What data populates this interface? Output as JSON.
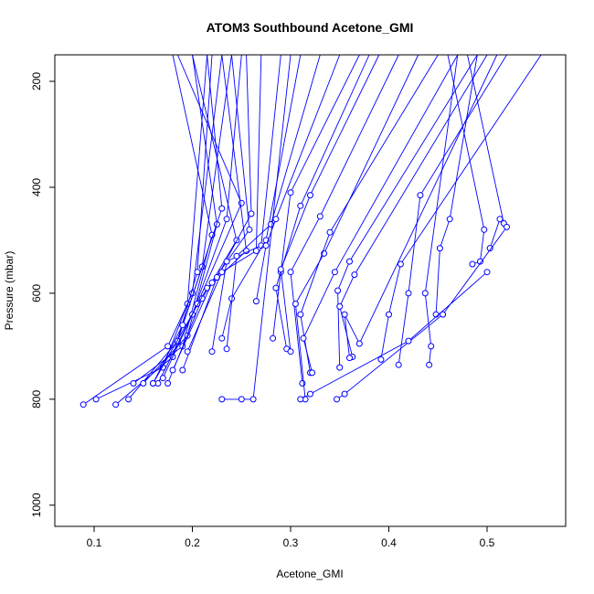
{
  "chart_data": {
    "type": "line",
    "title": "ATOM3 Southbound Acetone_GMI",
    "xlabel": "Acetone_GMI",
    "ylabel": "Pressure (mbar)",
    "xlim": [
      0.06,
      0.58
    ],
    "ylim": [
      1040,
      150
    ],
    "y_reversed": true,
    "x_ticks": [
      0.1,
      0.2,
      0.3,
      0.4,
      0.5
    ],
    "x_tick_labels": [
      "0.1",
      "0.2",
      "0.3",
      "0.4",
      "0.5"
    ],
    "y_ticks": [
      200,
      400,
      600,
      800,
      1000
    ],
    "y_tick_labels": [
      "200",
      "400",
      "600",
      "800",
      "1000"
    ],
    "series_color": "#0000ff",
    "marker": "open-circle",
    "series": [
      {
        "x": [
          0.102,
          0.17,
          0.195,
          0.215
        ],
        "y": [
          800,
          740,
          620,
          150
        ]
      },
      {
        "x": [
          0.089,
          0.175,
          0.2,
          0.23
        ],
        "y": [
          810,
          700,
          600,
          150
        ]
      },
      {
        "x": [
          0.122,
          0.18,
          0.205,
          0.22
        ],
        "y": [
          810,
          720,
          560,
          150
        ]
      },
      {
        "x": [
          0.135,
          0.185,
          0.21,
          0.24
        ],
        "y": [
          800,
          690,
          550,
          150
        ]
      },
      {
        "x": [
          0.14,
          0.19,
          0.22,
          0.18
        ],
        "y": [
          770,
          700,
          490,
          150
        ]
      },
      {
        "x": [
          0.15,
          0.195,
          0.225,
          0.2
        ],
        "y": [
          770,
          680,
          470,
          150
        ]
      },
      {
        "x": [
          0.16,
          0.19,
          0.23,
          0.215
        ],
        "y": [
          770,
          660,
          440,
          150
        ]
      },
      {
        "x": [
          0.165,
          0.2,
          0.235,
          0.25
        ],
        "y": [
          770,
          640,
          460,
          150
        ]
      },
      {
        "x": [
          0.17,
          0.205,
          0.25,
          0.185
        ],
        "y": [
          760,
          620,
          430,
          150
        ]
      },
      {
        "x": [
          0.175,
          0.21,
          0.245,
          0.2
        ],
        "y": [
          770,
          610,
          500,
          150
        ]
      },
      {
        "x": [
          0.16,
          0.215,
          0.255,
          0.23
        ],
        "y": [
          770,
          590,
          520,
          150
        ]
      },
      {
        "x": [
          0.18,
          0.22,
          0.258,
          0.24
        ],
        "y": [
          745,
          580,
          480,
          150
        ]
      },
      {
        "x": [
          0.19,
          0.225,
          0.26,
          0.255
        ],
        "y": [
          745,
          570,
          450,
          150
        ]
      },
      {
        "x": [
          0.195,
          0.23,
          0.265,
          0.27
        ],
        "y": [
          710,
          560,
          520,
          150
        ]
      },
      {
        "x": [
          0.22,
          0.235,
          0.27,
          0.29
        ],
        "y": [
          710,
          540,
          510,
          150
        ]
      },
      {
        "x": [
          0.23,
          0.24,
          0.275,
          0.31
        ],
        "y": [
          685,
          610,
          500,
          150
        ]
      },
      {
        "x": [
          0.235,
          0.245,
          0.28,
          0.33
        ],
        "y": [
          705,
          530,
          470,
          150
        ]
      },
      {
        "x": [
          0.265,
          0.275,
          0.285,
          0.35
        ],
        "y": [
          615,
          510,
          460,
          150
        ]
      },
      {
        "x": [
          0.282,
          0.29,
          0.3,
          0.37
        ],
        "y": [
          685,
          560,
          410,
          150
        ]
      },
      {
        "x": [
          0.296,
          0.285,
          0.31,
          0.38
        ],
        "y": [
          705,
          590,
          435,
          150
        ]
      },
      {
        "x": [
          0.3,
          0.29,
          0.32,
          0.39
        ],
        "y": [
          710,
          555,
          415,
          150
        ]
      },
      {
        "x": [
          0.312,
          0.3,
          0.33,
          0.41
        ],
        "y": [
          770,
          560,
          455,
          150
        ]
      },
      {
        "x": [
          0.315,
          0.305,
          0.334,
          0.43
        ],
        "y": [
          800,
          620,
          525,
          150
        ]
      },
      {
        "x": [
          0.32,
          0.31,
          0.34,
          0.45
        ],
        "y": [
          750,
          640,
          485,
          150
        ]
      },
      {
        "x": [
          0.322,
          0.313,
          0.345,
          0.47
        ],
        "y": [
          750,
          685,
          560,
          150
        ]
      },
      {
        "x": [
          0.35,
          0.348,
          0.36,
          0.49
        ],
        "y": [
          740,
          595,
          540,
          150
        ]
      },
      {
        "x": [
          0.363,
          0.35,
          0.365,
          0.5
        ],
        "y": [
          720,
          625,
          565,
          150
        ]
      },
      {
        "x": [
          0.36,
          0.355,
          0.37,
          0.51
        ],
        "y": [
          722,
          640,
          695,
          150
        ]
      },
      {
        "x": [
          0.392,
          0.4,
          0.412,
          0.555
        ],
        "y": [
          725,
          640,
          545,
          150
        ]
      },
      {
        "x": [
          0.41,
          0.42,
          0.432,
          0.52
        ],
        "y": [
          735,
          600,
          415,
          150
        ]
      },
      {
        "x": [
          0.441,
          0.443,
          0.437,
          0.47
        ],
        "y": [
          735,
          700,
          600,
          150
        ]
      },
      {
        "x": [
          0.448,
          0.452,
          0.462,
          0.49
        ],
        "y": [
          640,
          515,
          460,
          150
        ]
      },
      {
        "x": [
          0.485,
          0.493,
          0.497,
          0.46
        ],
        "y": [
          545,
          540,
          480,
          150
        ]
      },
      {
        "x": [
          0.503,
          0.513,
          0.517,
          0.48
        ],
        "y": [
          515,
          460,
          468,
          150
        ]
      },
      {
        "x": [
          0.23,
          0.25,
          0.262,
          0.3
        ],
        "y": [
          800,
          800,
          800,
          150
        ]
      },
      {
        "x": [
          0.347,
          0.355,
          0.455,
          0.52
        ],
        "y": [
          800,
          790,
          640,
          475
        ]
      },
      {
        "x": [
          0.31,
          0.32,
          0.42,
          0.5
        ],
        "y": [
          800,
          790,
          690,
          560
        ]
      }
    ]
  }
}
